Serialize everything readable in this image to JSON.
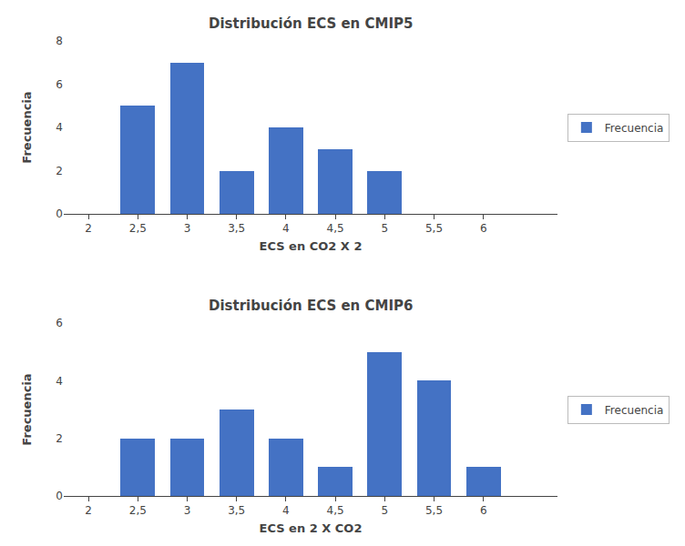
{
  "chart_data": [
    {
      "type": "bar",
      "title": "Distribución ECS en CMIP5",
      "xlabel": "ECS en CO2 X 2",
      "ylabel": "Frecuencia",
      "x": [
        2.5,
        3.0,
        3.5,
        4.0,
        4.5,
        5.0
      ],
      "series": [
        {
          "name": "Frecuencia",
          "color": "#4472C4",
          "values": [
            5,
            7,
            2,
            4,
            3,
            2
          ]
        }
      ],
      "xlim": [
        1.75,
        6.75
      ],
      "xticks": [
        2,
        {
          "value": 2.5,
          "label": "2,5"
        },
        3,
        {
          "value": 3.5,
          "label": "3,5"
        },
        4,
        {
          "value": 4.5,
          "label": "4,5"
        },
        5,
        {
          "value": 5.5,
          "label": "5,5"
        },
        6
      ],
      "ylim": [
        0,
        8
      ],
      "yticks": [
        0,
        2,
        4,
        6,
        8
      ],
      "grid": false,
      "legend": "right"
    },
    {
      "type": "bar",
      "title": "Distribución ECS en CMIP6",
      "xlabel": "ECS en 2 X CO2",
      "ylabel": "Frecuencia",
      "x": [
        2.5,
        3.0,
        3.5,
        4.0,
        4.5,
        5.0,
        5.5,
        6.0
      ],
      "series": [
        {
          "name": "Frecuencia",
          "color": "#4472C4",
          "values": [
            2,
            2,
            3,
            2,
            1,
            5,
            4,
            1
          ]
        }
      ],
      "xlim": [
        1.75,
        6.75
      ],
      "xticks": [
        2,
        {
          "value": 2.5,
          "label": "2,5"
        },
        3,
        {
          "value": 3.5,
          "label": "3,5"
        },
        4,
        {
          "value": 4.5,
          "label": "4,5"
        },
        5,
        {
          "value": 5.5,
          "label": "5,5"
        },
        6
      ],
      "ylim": [
        0,
        6
      ],
      "yticks": [
        0,
        2,
        4,
        6
      ],
      "grid": false,
      "legend": "right"
    }
  ]
}
